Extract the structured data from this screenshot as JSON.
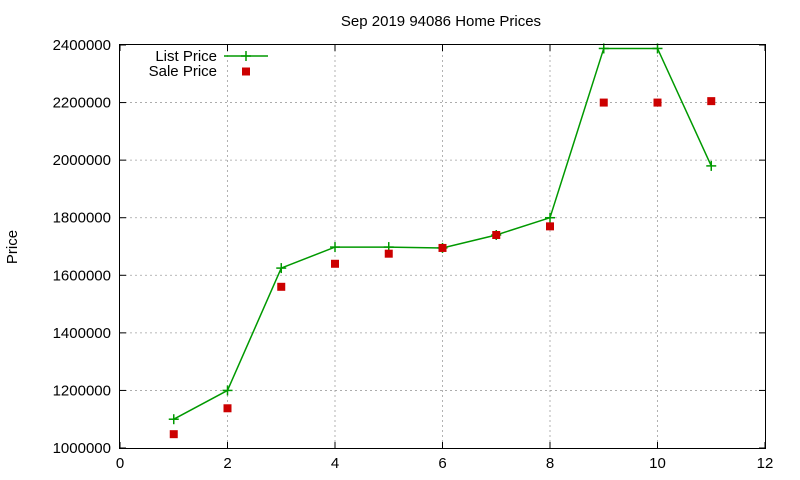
{
  "chart_data": {
    "type": "line",
    "title": "Sep 2019 94086 Home Prices",
    "xlabel": "",
    "ylabel": "Price",
    "xlim": [
      0,
      12
    ],
    "ylim": [
      1000000,
      2400000
    ],
    "x_ticks": [
      "0",
      "2",
      "4",
      "6",
      "8",
      "10",
      "12"
    ],
    "y_ticks": [
      "1000000",
      "1200000",
      "1400000",
      "1600000",
      "1800000",
      "2000000",
      "2200000",
      "2400000"
    ],
    "grid": true,
    "legend_position": "top-left",
    "series": [
      {
        "name": "List Price",
        "style": "line-with-plus-markers",
        "color": "#009900",
        "x": [
          1,
          2,
          3,
          4,
          5,
          6,
          7,
          8,
          9,
          10,
          11
        ],
        "values": [
          1100000,
          1200000,
          1625000,
          1698000,
          1698000,
          1695000,
          1740000,
          1800000,
          2388000,
          2388000,
          1980000
        ]
      },
      {
        "name": "Sale Price",
        "style": "square-markers",
        "color": "#cc0000",
        "x": [
          1,
          2,
          3,
          4,
          5,
          6,
          7,
          8,
          9,
          10,
          11
        ],
        "values": [
          1048000,
          1138000,
          1560000,
          1640000,
          1675000,
          1695000,
          1740000,
          1770000,
          2200000,
          2200000,
          2205000
        ]
      }
    ]
  }
}
